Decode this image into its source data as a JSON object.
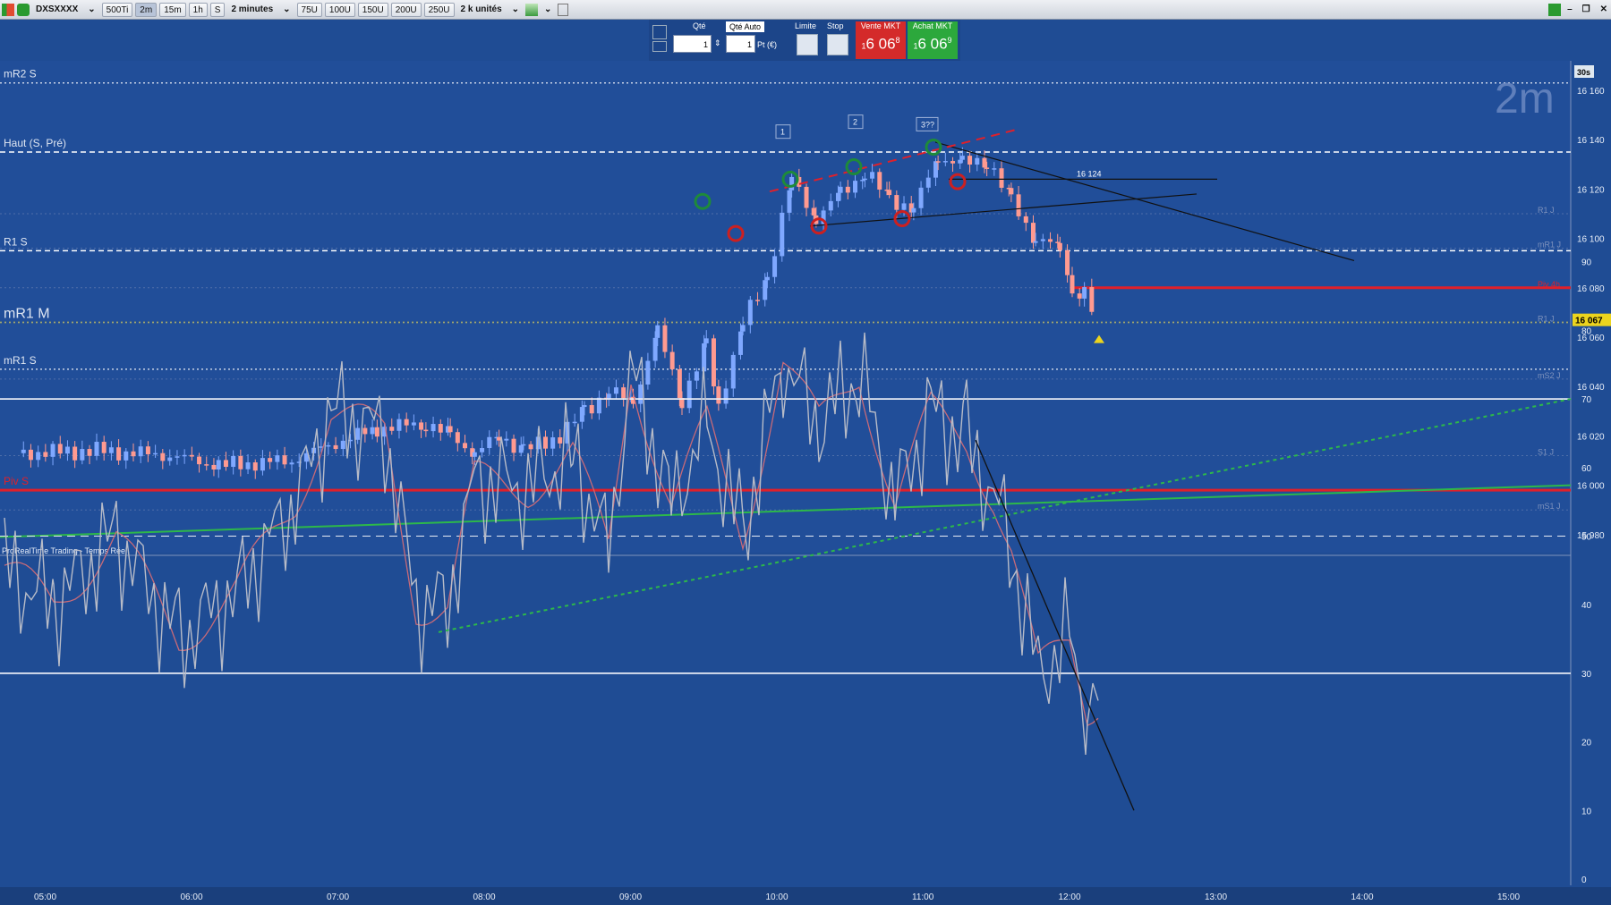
{
  "toolbar": {
    "symbol": "DXSXXXX",
    "buttons": [
      "500Ti",
      "2m",
      "15m",
      "1h",
      "S"
    ],
    "active_button": "2m",
    "period": "2 minutes",
    "tick_buttons": [
      "75U",
      "100U",
      "150U",
      "200U",
      "250U"
    ],
    "units": "2 k unités"
  },
  "order_panel": {
    "qty_label": "Qté",
    "qty_value": "1",
    "auto_label": "Qté Auto",
    "pts_value": "1",
    "pts_unit": "Pt (€)",
    "limit_label": "Limite",
    "stop_label": "Stop",
    "sell_label": "Vente MKT",
    "sell_price": "6 06",
    "sell_prefix": "1",
    "sell_sup": "8",
    "buy_label": "Achat MKT",
    "buy_price": "6 06",
    "buy_prefix": "1",
    "buy_sup": "9"
  },
  "colors": {
    "background": "#1f4c94",
    "up_candle": "#7fa8ff",
    "down_candle": "#ff9a90",
    "pivot_line": "#e0202a",
    "trend_green": "#2db84a",
    "price_badge": "#ecd41e"
  },
  "chart_data": [
    {
      "type": "candlestick",
      "timeframe_label": "2m",
      "timer_label": "30s",
      "watermark": "ProRealTime Trading - Temps Réel",
      "x_labels": [
        "05:00",
        "06:00",
        "07:00",
        "08:00",
        "09:00",
        "10:00",
        "11:00",
        "12:00",
        "13:00",
        "14:00",
        "15:00"
      ],
      "yticks": [
        16160,
        16140,
        16120,
        16100,
        16080,
        16060,
        16040,
        16020,
        16000,
        15980
      ],
      "ylim": [
        15976,
        16178
      ],
      "last_price": 16067,
      "last_price_label": "16 067",
      "ohlc_anchors": [
        [
          "04:50",
          16013
        ],
        [
          "05:20",
          16014
        ],
        [
          "05:50",
          16012
        ],
        [
          "06:10",
          16008
        ],
        [
          "06:40",
          16010
        ],
        [
          "06:55",
          16016
        ],
        [
          "07:15",
          16023
        ],
        [
          "07:35",
          16025
        ],
        [
          "07:45",
          16020
        ],
        [
          "07:55",
          16013
        ],
        [
          "08:05",
          16020
        ],
        [
          "08:15",
          16014
        ],
        [
          "08:30",
          16020
        ],
        [
          "08:40",
          16030
        ],
        [
          "08:50",
          16038
        ],
        [
          "09:00",
          16034
        ],
        [
          "09:10",
          16062
        ],
        [
          "09:20",
          16035
        ],
        [
          "09:30",
          16056
        ],
        [
          "09:35",
          16032
        ],
        [
          "09:45",
          16066
        ],
        [
          "09:55",
          16084
        ],
        [
          "10:05",
          16124
        ],
        [
          "10:15",
          16108
        ],
        [
          "10:25",
          16118
        ],
        [
          "10:35",
          16127
        ],
        [
          "10:45",
          16116
        ],
        [
          "10:55",
          16112
        ],
        [
          "11:05",
          16133
        ],
        [
          "11:15",
          16130
        ],
        [
          "11:25",
          16132
        ],
        [
          "11:35",
          16115
        ],
        [
          "11:45",
          16100
        ],
        [
          "11:55",
          16096
        ],
        [
          "12:00",
          16078
        ],
        [
          "12:05",
          16078
        ],
        [
          "12:10",
          16066
        ]
      ],
      "levels": [
        {
          "label": "mR2 S",
          "value": 16163,
          "color": "#c8d2e6",
          "style": "dotted"
        },
        {
          "label": "Haut (S, Pré)",
          "value": 16135,
          "color": "#ffffff",
          "style": "dashed"
        },
        {
          "label": "R1 S",
          "value": 16095,
          "color": "#ffffff",
          "style": "dashed"
        },
        {
          "label": "mR1 M",
          "value": 16066,
          "color": "#ecd41e",
          "style": "dotted"
        },
        {
          "label": "mR1 S",
          "value": 16047,
          "color": "#c8d2e6",
          "style": "dotted"
        },
        {
          "label": "Piv S",
          "value": 15998,
          "color": "#e0202a",
          "style": "solid"
        }
      ],
      "right_level_labels": [
        "R1 J",
        "mR1 J",
        "Piv 4h",
        "R1 J",
        "mS2 J",
        "S1 J",
        "mS1 J"
      ],
      "annotations": [
        {
          "text": "16 124",
          "value": 16124
        },
        {
          "text": "1"
        },
        {
          "text": "2"
        },
        {
          "text": "3??"
        }
      ]
    },
    {
      "type": "line",
      "name": "oscillator",
      "yticks": [
        90,
        80,
        70,
        60,
        50,
        40,
        30,
        20,
        10,
        0
      ],
      "ylim": [
        0,
        95
      ],
      "levels": [
        70,
        50,
        30
      ]
    }
  ]
}
